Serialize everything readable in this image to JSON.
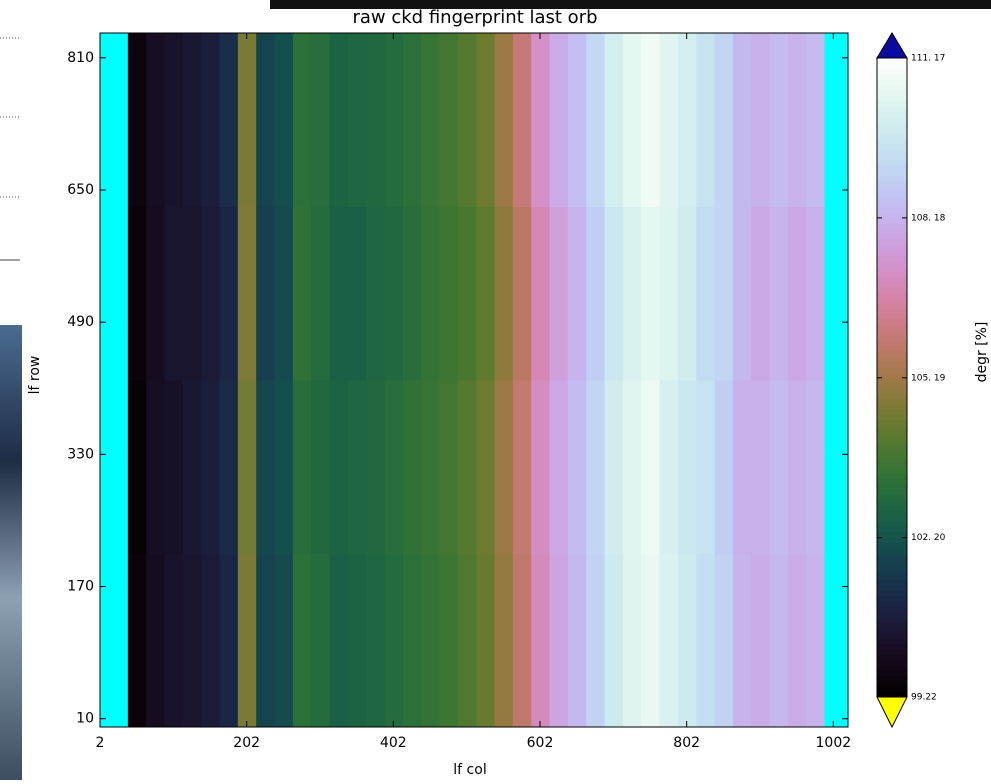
{
  "chart_data": {
    "type": "heatmap",
    "title": "raw ckd fingerprint last orb",
    "x_label": "lf col",
    "y_label": "lf row",
    "colorbar_label": "degr [%]",
    "colormap": "cubehelix",
    "bad_color": "#00ffff",
    "over_color": "#0a0aa0",
    "under_color": "#ffff00",
    "x_bins": [
      2,
      40,
      65,
      90,
      115,
      140,
      165,
      190,
      215,
      240,
      265,
      290,
      315,
      340,
      365,
      390,
      415,
      440,
      465,
      490,
      515,
      540,
      565,
      590,
      615,
      640,
      665,
      690,
      715,
      740,
      765,
      790,
      815,
      840,
      865,
      890,
      915,
      940,
      965,
      990,
      1022
    ],
    "y_bins": [
      0,
      210,
      420,
      630,
      840
    ],
    "values": [
      [
        null,
        99.5,
        100.0,
        100.3,
        100.4,
        100.6,
        101.0,
        104.6,
        101.8,
        102.0,
        103.2,
        103.0,
        102.6,
        102.7,
        102.8,
        103.0,
        103.2,
        103.4,
        103.6,
        103.9,
        104.3,
        105.0,
        105.8,
        107.0,
        107.8,
        108.3,
        109.0,
        109.8,
        110.3,
        110.6,
        110.2,
        109.8,
        109.4,
        109.0,
        108.2,
        108.0,
        108.3,
        108.0,
        108.2,
        null
      ],
      [
        null,
        99.4,
        100.1,
        100.2,
        100.5,
        100.7,
        101.1,
        104.5,
        101.9,
        102.1,
        103.1,
        102.9,
        102.7,
        102.8,
        102.9,
        103.1,
        103.3,
        103.5,
        103.7,
        104.0,
        104.4,
        105.1,
        105.9,
        107.1,
        107.9,
        108.4,
        109.1,
        109.9,
        110.4,
        110.7,
        110.1,
        109.7,
        109.5,
        108.9,
        108.1,
        108.1,
        108.4,
        108.1,
        108.3,
        null
      ],
      [
        null,
        99.5,
        100.0,
        100.4,
        100.4,
        100.6,
        101.0,
        104.7,
        101.7,
        102.0,
        103.3,
        103.0,
        102.6,
        102.6,
        102.8,
        102.9,
        103.1,
        103.4,
        103.6,
        103.8,
        104.2,
        104.9,
        105.7,
        106.9,
        107.7,
        108.2,
        108.9,
        109.7,
        110.2,
        110.5,
        110.3,
        109.9,
        109.3,
        109.1,
        108.3,
        107.9,
        108.2,
        107.9,
        108.1,
        null
      ],
      [
        null,
        99.6,
        100.1,
        100.3,
        100.5,
        100.7,
        101.2,
        104.6,
        101.8,
        102.1,
        103.2,
        103.1,
        102.7,
        102.8,
        102.9,
        103.0,
        103.2,
        103.5,
        103.7,
        104.0,
        104.4,
        105.1,
        106.0,
        107.2,
        108.0,
        108.5,
        109.2,
        110.0,
        110.5,
        110.8,
        110.4,
        110.0,
        109.5,
        109.1,
        108.3,
        108.1,
        108.4,
        108.2,
        108.4,
        null
      ]
    ],
    "xlim": [
      2,
      1022
    ],
    "ylim": [
      0,
      840
    ],
    "xticks": [
      2,
      202,
      402,
      602,
      802,
      1002
    ],
    "yticks": [
      10,
      170,
      330,
      490,
      650,
      810
    ],
    "clim": [
      99.22,
      111.17
    ],
    "cticks": [
      {
        "value": 99.22,
        "label": "99.22"
      },
      {
        "value": 102.2,
        "label": "102. 20"
      },
      {
        "value": 105.19,
        "label": "105. 19"
      },
      {
        "value": 108.18,
        "label": "108. 18"
      },
      {
        "value": 111.17,
        "label": "111. 17"
      }
    ]
  }
}
